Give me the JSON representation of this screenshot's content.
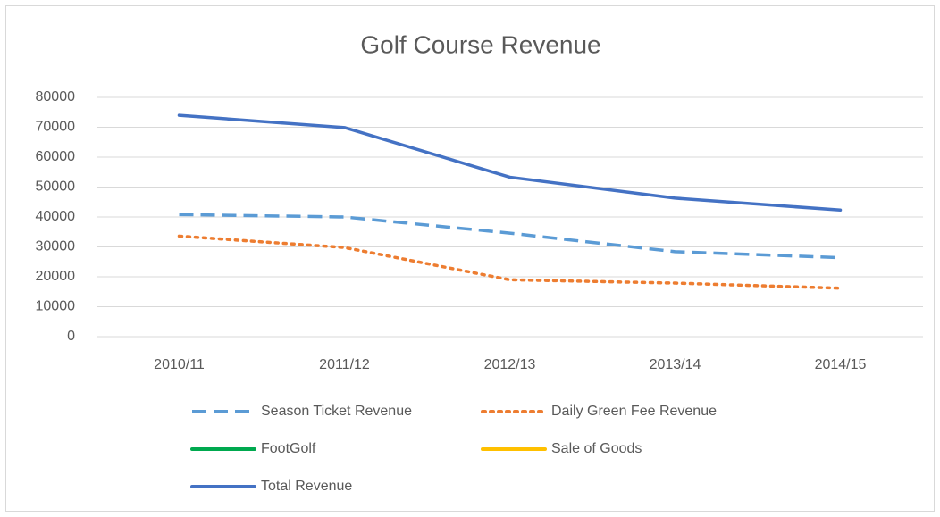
{
  "chart_data": {
    "type": "line",
    "title": "Golf Course Revenue",
    "categories": [
      "2010/11",
      "2011/12",
      "2012/13",
      "2013/14",
      "2014/15"
    ],
    "series": [
      {
        "name": "Season Ticket Revenue",
        "color": "#5b9bd5",
        "dash": "dashed",
        "values": [
          40800,
          40000,
          34600,
          28400,
          26400
        ]
      },
      {
        "name": "Daily Green Fee Revenue",
        "color": "#ed7d31",
        "dash": "dotted",
        "values": [
          33600,
          29800,
          19000,
          17900,
          16200
        ]
      },
      {
        "name": "FootGolf",
        "color": "#00a94f",
        "dash": "solid",
        "values": [
          null,
          null,
          null,
          null,
          null
        ]
      },
      {
        "name": "Sale of Goods",
        "color": "#ffc000",
        "dash": "solid",
        "values": [
          null,
          null,
          null,
          null,
          null
        ]
      },
      {
        "name": "Total Revenue",
        "color": "#4472c4",
        "dash": "solid",
        "values": [
          74000,
          69900,
          53300,
          46300,
          42300
        ]
      }
    ],
    "ylim": [
      0,
      80000
    ],
    "yticks": [
      0,
      10000,
      20000,
      30000,
      40000,
      50000,
      60000,
      70000,
      80000
    ],
    "grid": true
  }
}
